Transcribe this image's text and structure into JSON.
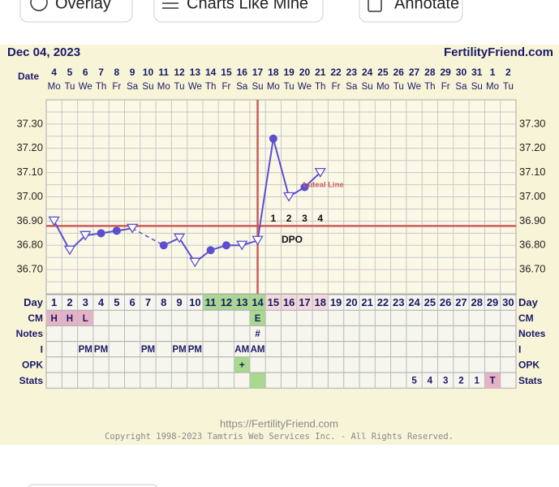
{
  "buttons": [
    "Overlay",
    "Charts Like Mine",
    "Annotate"
  ],
  "chart_data": {
    "type": "line",
    "title": "Dec 04, 2023",
    "site": "FertilityFriend.com",
    "date_label": "Date",
    "dates": [
      4,
      5,
      6,
      7,
      8,
      9,
      10,
      11,
      12,
      13,
      14,
      15,
      16,
      17,
      18,
      19,
      20,
      21,
      22,
      23,
      24,
      25,
      26,
      27,
      28,
      29,
      30,
      31,
      1,
      2
    ],
    "weekdays": [
      "Mo",
      "Tu",
      "We",
      "Th",
      "Fr",
      "Sa",
      "Su",
      "Mo",
      "Tu",
      "We",
      "Th",
      "Fr",
      "Sa",
      "Su",
      "Mo",
      "Tu",
      "We",
      "Th",
      "Fr",
      "Sa",
      "Su",
      "Mo",
      "Tu",
      "We",
      "Th",
      "Fr",
      "Sa",
      "Su",
      "Mo",
      "Tu"
    ],
    "day_label": "Day",
    "categories": [
      1,
      2,
      3,
      4,
      5,
      6,
      7,
      8,
      9,
      10,
      11,
      12,
      13,
      14,
      15,
      16,
      17,
      18,
      19,
      20,
      21,
      22,
      23,
      24,
      25,
      26,
      27,
      28,
      29,
      30
    ],
    "category_fills": [
      null,
      null,
      null,
      null,
      null,
      null,
      null,
      null,
      null,
      null,
      "#a8d98e",
      "#a8d98e",
      "#a8d98e",
      "#a8d98e",
      "#f3d9d9",
      "#f3d9d9",
      "#f3d9d9",
      "#f3d9d9",
      null,
      null,
      null,
      null,
      null,
      null,
      null,
      null,
      null,
      null,
      null,
      null
    ],
    "values": [
      36.9,
      36.78,
      36.84,
      36.85,
      36.86,
      36.87,
      null,
      36.8,
      36.83,
      36.73,
      36.78,
      36.8,
      36.8,
      36.82,
      37.24,
      37.0,
      37.04,
      37.1,
      null,
      null,
      null,
      null,
      null,
      null,
      null,
      null,
      null,
      null,
      null,
      null
    ],
    "point_styles": [
      "triangle",
      "triangle",
      "triangle",
      "circle",
      "circle",
      "triangle",
      null,
      "circle",
      "triangle",
      "triangle",
      "circle",
      "circle",
      "triangle",
      "triangle",
      "circle",
      "triangle",
      "circle",
      "triangle",
      null,
      null,
      null,
      null,
      null,
      null,
      null,
      null,
      null,
      null,
      null,
      null
    ],
    "color": "#5b4fd0",
    "ylim": [
      36.6,
      37.4
    ],
    "yticks": [
      {
        "value": 37.3,
        "label": "37.30"
      },
      {
        "value": 37.2,
        "label": "37.20"
      },
      {
        "value": 37.1,
        "label": "37.10"
      },
      {
        "value": 37.0,
        "label": "37.00"
      },
      {
        "value": 36.9,
        "label": "36.90"
      },
      {
        "value": 36.8,
        "label": "36.80"
      },
      {
        "value": 36.7,
        "label": "36.70"
      }
    ],
    "grid": true,
    "coverline": 36.88,
    "ovulation_day": 14,
    "marker_color": "#cc5b5b",
    "dpo_numbers": [
      1,
      2,
      3,
      4
    ],
    "dpo_start_day": 15,
    "dpo_label": "DPO",
    "luteal_label": "Luteal Line"
  },
  "table": {
    "rows": [
      {
        "label": "CM",
        "cells": [
          "H",
          "H",
          "L",
          null,
          null,
          null,
          null,
          null,
          null,
          null,
          null,
          null,
          null,
          "E",
          null,
          null,
          null,
          null,
          null,
          null,
          null,
          null,
          null,
          null,
          null,
          null,
          null,
          null,
          null,
          null
        ],
        "fills": [
          "#e6b3c6",
          "#e6b3c6",
          "#e6b3c6",
          null,
          null,
          null,
          null,
          null,
          null,
          null,
          null,
          null,
          null,
          "#a8d98e",
          null,
          null,
          null,
          null,
          null,
          null,
          null,
          null,
          null,
          null,
          null,
          null,
          null,
          null,
          null,
          null
        ]
      },
      {
        "label": "Notes",
        "cells": [
          null,
          null,
          null,
          null,
          null,
          null,
          null,
          null,
          null,
          null,
          null,
          null,
          null,
          "#",
          null,
          null,
          null,
          null,
          null,
          null,
          null,
          null,
          null,
          null,
          null,
          null,
          null,
          null,
          null,
          null
        ],
        "fills": [
          null,
          null,
          null,
          null,
          null,
          null,
          null,
          null,
          null,
          null,
          null,
          null,
          null,
          null,
          null,
          null,
          null,
          null,
          null,
          null,
          null,
          null,
          null,
          null,
          null,
          null,
          null,
          null,
          null,
          null
        ]
      },
      {
        "label": "I",
        "cells": [
          null,
          null,
          "PM",
          "PM",
          null,
          null,
          "PM",
          null,
          "PM",
          "PM",
          null,
          null,
          "AM",
          "AM",
          null,
          null,
          null,
          null,
          null,
          null,
          null,
          null,
          null,
          null,
          null,
          null,
          null,
          null,
          null,
          null
        ],
        "fills": [
          null,
          null,
          null,
          null,
          null,
          null,
          null,
          null,
          null,
          null,
          null,
          null,
          null,
          null,
          null,
          null,
          null,
          null,
          null,
          null,
          null,
          null,
          null,
          null,
          null,
          null,
          null,
          null,
          null,
          null
        ]
      },
      {
        "label": "OPK",
        "cells": [
          null,
          null,
          null,
          null,
          null,
          null,
          null,
          null,
          null,
          null,
          null,
          null,
          "+",
          null,
          null,
          null,
          null,
          null,
          null,
          null,
          null,
          null,
          null,
          null,
          null,
          null,
          null,
          null,
          null,
          null
        ],
        "fills": [
          null,
          null,
          null,
          null,
          null,
          null,
          null,
          null,
          null,
          null,
          null,
          null,
          "#a8d98e",
          null,
          null,
          null,
          null,
          null,
          null,
          null,
          null,
          null,
          null,
          null,
          null,
          null,
          null,
          null,
          null,
          null
        ]
      },
      {
        "label": "Stats",
        "cells": [
          null,
          null,
          null,
          null,
          null,
          null,
          null,
          null,
          null,
          null,
          null,
          null,
          null,
          null,
          null,
          null,
          null,
          null,
          null,
          null,
          null,
          null,
          null,
          "5",
          "4",
          "3",
          "2",
          "1",
          "T",
          null
        ],
        "fills": [
          null,
          null,
          null,
          null,
          null,
          null,
          null,
          null,
          null,
          null,
          null,
          null,
          null,
          "#a8d98e",
          null,
          null,
          null,
          null,
          null,
          null,
          null,
          null,
          null,
          null,
          null,
          null,
          null,
          null,
          "#e6b3c6",
          null
        ]
      }
    ]
  },
  "footer": {
    "url": "https://FertilityFriend.com",
    "copyright": "Copyright 1998-2023 Tamtris Web Services Inc. - All Rights Reserved."
  }
}
